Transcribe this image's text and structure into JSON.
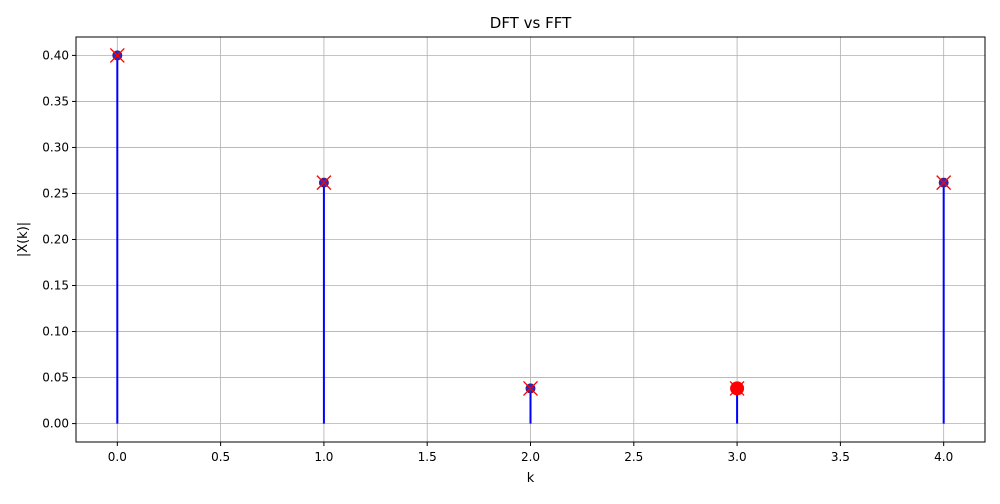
{
  "chart_data": {
    "type": "stem",
    "title": "DFT vs FFT",
    "xlabel": "k",
    "ylabel": "|X(k)|",
    "xlim": [
      -0.2,
      4.2
    ],
    "ylim": [
      -0.02,
      0.42
    ],
    "xticks": [
      0.0,
      0.5,
      1.0,
      1.5,
      2.0,
      2.5,
      3.0,
      3.5,
      4.0
    ],
    "xtick_labels": [
      "0.0",
      "0.5",
      "1.0",
      "1.5",
      "2.0",
      "2.5",
      "3.0",
      "3.5",
      "4.0"
    ],
    "yticks": [
      0.0,
      0.05,
      0.1,
      0.15,
      0.2,
      0.25,
      0.3,
      0.35,
      0.4
    ],
    "ytick_labels": [
      "0.00",
      "0.05",
      "0.10",
      "0.15",
      "0.20",
      "0.25",
      "0.30",
      "0.35",
      "0.40"
    ],
    "grid": true,
    "series": [
      {
        "style": "stem",
        "color": "#0000ff",
        "x": [
          0,
          1,
          2,
          3,
          4
        ],
        "y": [
          0.4,
          0.2618,
          0.0382,
          0.0382,
          0.2618
        ]
      },
      {
        "style": "x-marker",
        "color": "#ff0000",
        "x": [
          0,
          1,
          2,
          3,
          4
        ],
        "y": [
          0.4,
          0.2618,
          0.0382,
          0.0382,
          0.2618
        ]
      }
    ]
  }
}
